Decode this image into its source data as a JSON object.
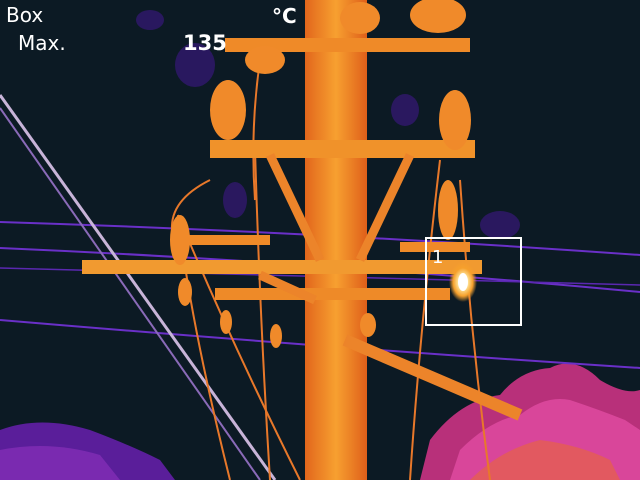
{
  "overlay": {
    "box_label": "Box",
    "max_label": "Max.",
    "max_value": "135",
    "unit": "°C"
  },
  "roi": {
    "index": "1"
  },
  "palette": {
    "background": "#0c1a24",
    "cool": "#3a1f7a",
    "mid": "#e0601a",
    "warm": "#f59a2a",
    "hot": "#fff4c8"
  }
}
